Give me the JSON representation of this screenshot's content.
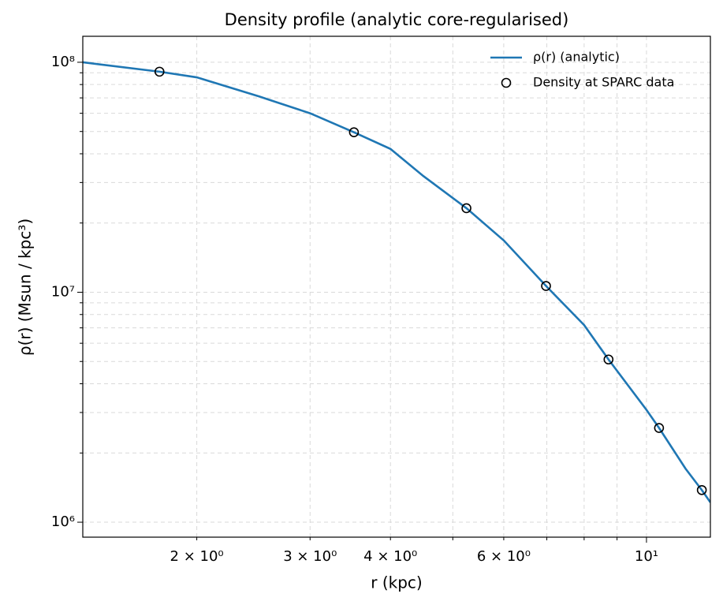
{
  "chart_data": {
    "type": "line",
    "title": "Density profile (analytic core-regularised)",
    "x_label": "r (kpc)",
    "y_label": "ρ(r) (Msun / kpc³)",
    "x_log": true,
    "y_log": true,
    "grid": true,
    "legend": "upper right",
    "xlim": [
      1.33,
      12.57
    ],
    "ylim": [
      861000,
      129700000
    ],
    "xticks": [
      {
        "value": 2,
        "label": "2 × 10⁰"
      },
      {
        "value": 3,
        "label": "3 × 10⁰"
      },
      {
        "value": 4,
        "label": "4 × 10⁰"
      },
      {
        "value": 6,
        "label": "6 × 10⁰"
      },
      {
        "value": 10,
        "label": "10¹"
      }
    ],
    "x_minor_ticks": [
      5,
      7,
      8,
      9
    ],
    "yticks": [
      {
        "value": 1000000,
        "label": "10⁶"
      },
      {
        "value": 10000000,
        "label": "10⁷"
      },
      {
        "value": 100000000,
        "label": "10⁸"
      }
    ],
    "y_minor_ticks": [
      2000000,
      3000000,
      4000000,
      5000000,
      6000000,
      7000000,
      8000000,
      9000000,
      20000000,
      30000000,
      40000000,
      50000000,
      60000000,
      70000000,
      80000000,
      90000000
    ],
    "series": [
      {
        "name": "ρ(r) (analytic)",
        "style": "line",
        "color": "#1f77b4",
        "x": [
          1.33,
          1.75,
          2.0,
          2.5,
          3.0,
          3.51,
          4.0,
          4.5,
          5.25,
          6.0,
          6.98,
          8.0,
          8.73,
          10.0,
          10.46,
          11.5,
          12.19,
          12.57
        ],
        "values": [
          100000000,
          91000000,
          86000000,
          71000000,
          60000000,
          49600000,
          42000000,
          32000000,
          23200000,
          16800000,
          10650000,
          7200000,
          5100000,
          3080000,
          2570000,
          1710000,
          1380000,
          1220000
        ]
      },
      {
        "name": "Density at SPARC data",
        "style": "markers",
        "color": "#000000",
        "x": [
          1.75,
          3.51,
          5.25,
          6.98,
          8.73,
          10.46,
          12.19
        ],
        "values": [
          91000000,
          49600000,
          23200000,
          10650000,
          5100000,
          2570000,
          1380000
        ]
      }
    ]
  }
}
